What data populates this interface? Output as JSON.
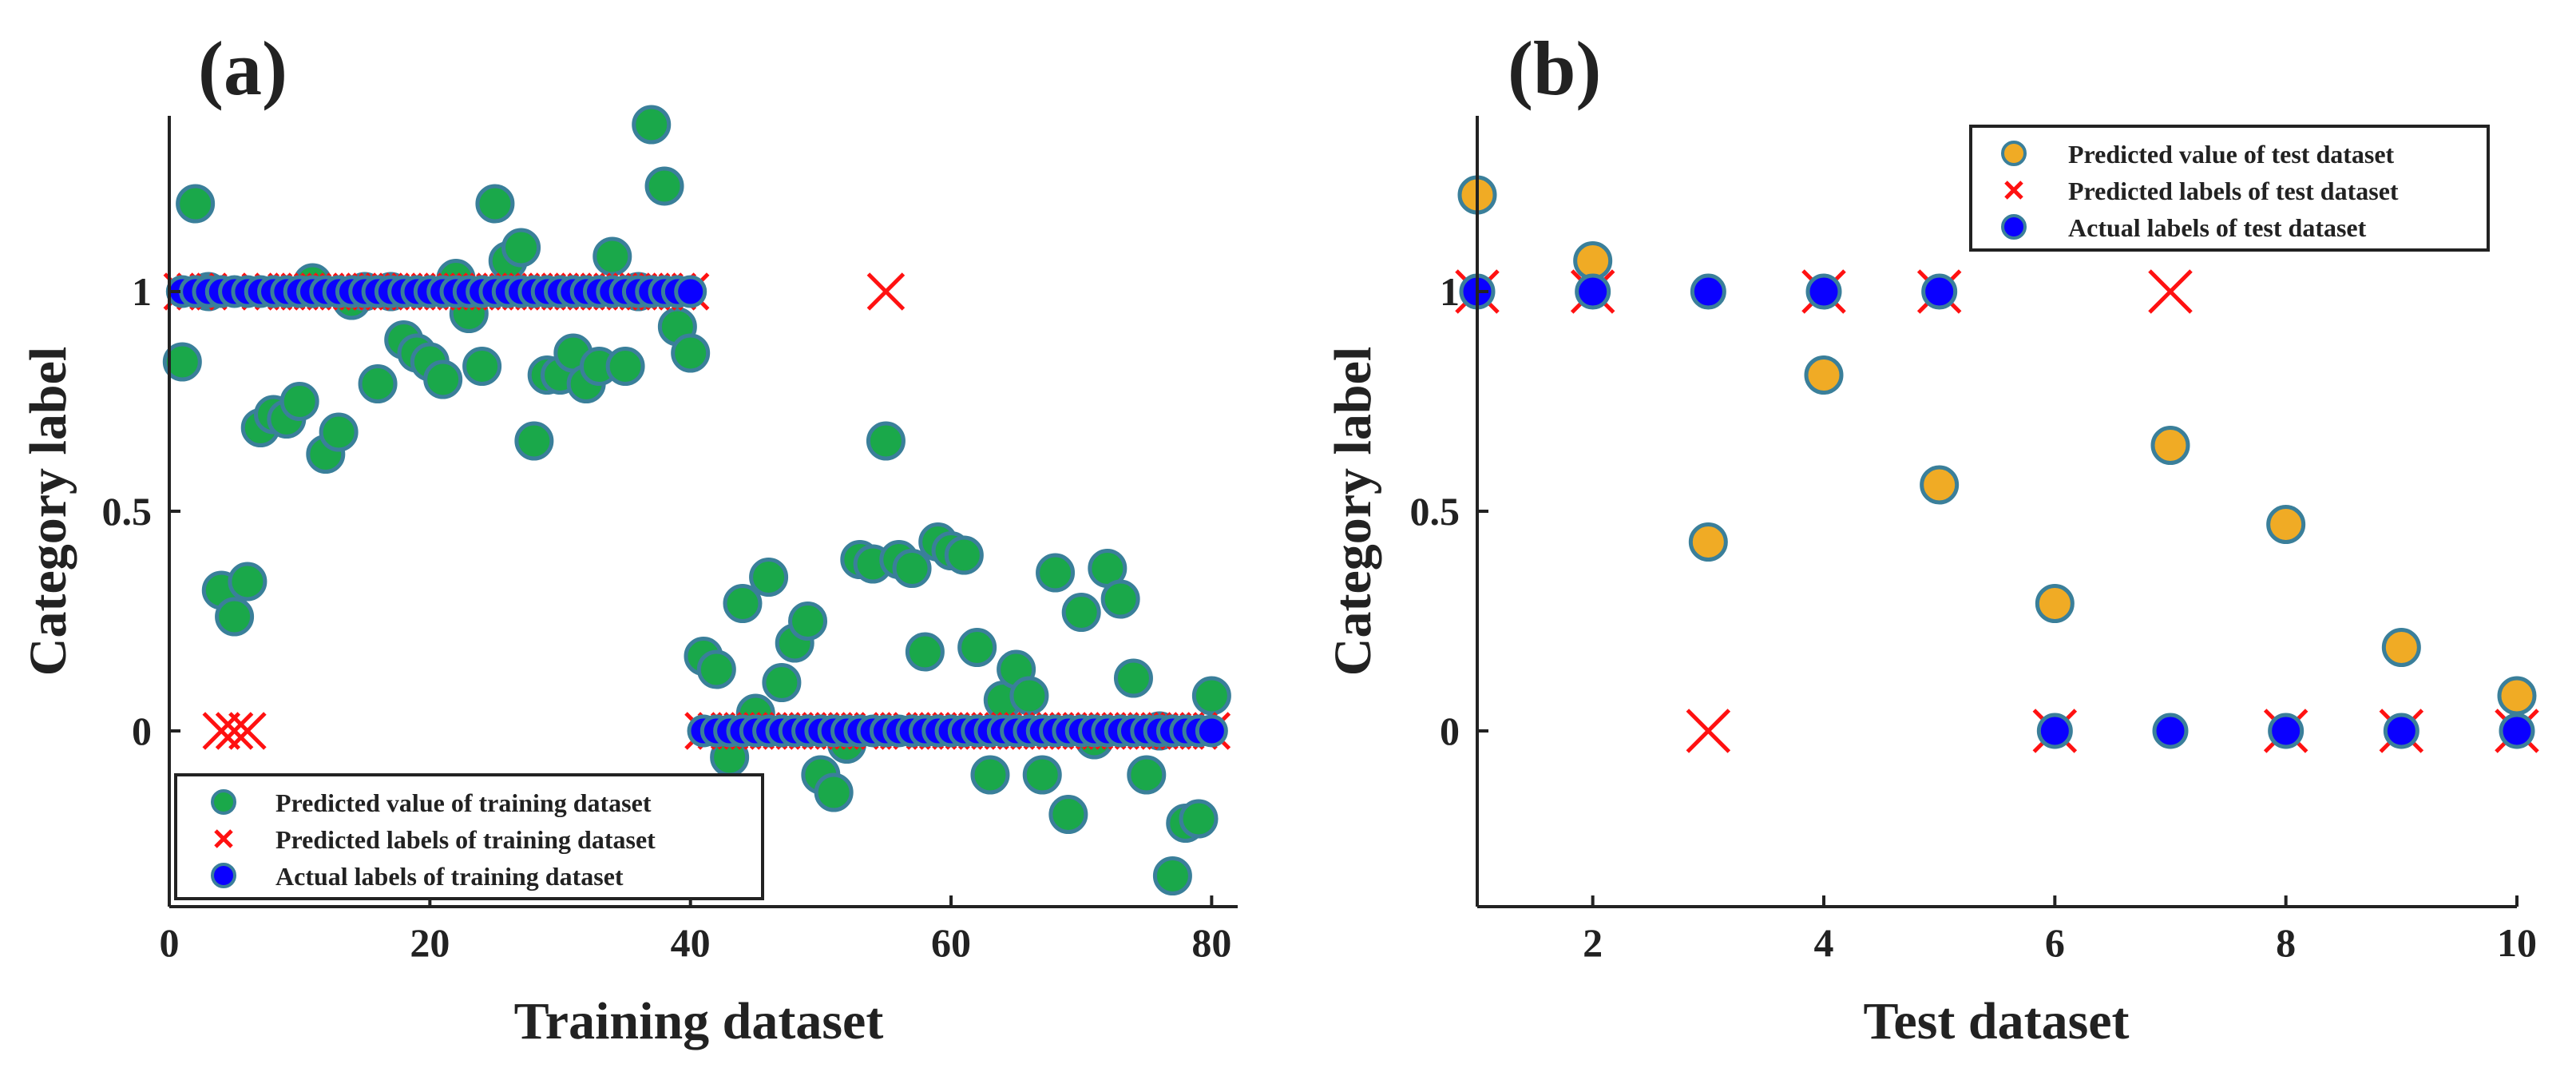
{
  "colors": {
    "train_fill": "#1aa84a",
    "train_edge": "#3a7f9a",
    "test_fill": "#f0ab25",
    "test_edge": "#3a7f9a",
    "actual_fill": "#0a00ff",
    "actual_edge": "#3a7f9a",
    "cross": "#ff1111",
    "text": "#222222"
  },
  "chart_data": [
    {
      "type": "scatter",
      "panel_label": "(a)",
      "xlabel": "Training dataset",
      "ylabel": "Category label",
      "xlim": [
        0,
        82
      ],
      "ylim": [
        -0.4,
        1.4
      ],
      "xticks": [
        0,
        20,
        40,
        60,
        80
      ],
      "xtick_labels": [
        "0",
        "20",
        "40",
        "60",
        "80"
      ],
      "yticks": [
        0,
        0.5,
        1
      ],
      "ytick_labels": [
        "0",
        "0.5",
        "1"
      ],
      "legend_location": "bottom-left",
      "legend": [
        "Predicted value of training dataset",
        "Predicted labels of training dataset",
        "Actual labels of training dataset"
      ],
      "series": [
        {
          "name": "Predicted value of training dataset",
          "marker": "circle",
          "x": [
            1,
            2,
            3,
            4,
            5,
            6,
            7,
            8,
            9,
            10,
            11,
            12,
            13,
            14,
            15,
            16,
            17,
            18,
            19,
            20,
            21,
            22,
            23,
            24,
            25,
            26,
            27,
            28,
            29,
            30,
            31,
            32,
            33,
            34,
            35,
            36,
            37,
            38,
            39,
            40,
            41,
            42,
            43,
            44,
            45,
            46,
            47,
            48,
            49,
            50,
            51,
            52,
            53,
            54,
            55,
            56,
            57,
            58,
            59,
            60,
            61,
            62,
            63,
            64,
            65,
            66,
            67,
            68,
            69,
            70,
            71,
            72,
            73,
            74,
            75,
            76,
            77,
            78,
            79,
            80
          ],
          "y": [
            0.84,
            1.2,
            1.0,
            0.32,
            0.26,
            0.34,
            0.69,
            0.72,
            0.71,
            0.75,
            1.02,
            0.63,
            0.68,
            0.98,
            1.0,
            0.79,
            1.0,
            0.89,
            0.86,
            0.84,
            0.8,
            1.03,
            0.95,
            0.83,
            1.2,
            1.07,
            1.1,
            0.66,
            0.81,
            0.81,
            0.86,
            0.79,
            0.83,
            1.08,
            0.83,
            1.0,
            1.38,
            1.24,
            0.92,
            0.86,
            0.17,
            0.14,
            -0.06,
            0.29,
            0.04,
            0.35,
            0.11,
            0.2,
            0.25,
            -0.1,
            -0.14,
            -0.03,
            0.39,
            0.38,
            0.66,
            0.39,
            0.37,
            0.18,
            0.43,
            0.41,
            0.4,
            0.19,
            -0.1,
            0.07,
            0.14,
            0.08,
            -0.1,
            0.36,
            -0.19,
            0.27,
            -0.02,
            0.37,
            0.3,
            0.12,
            -0.1,
            0.0,
            -0.33,
            -0.21,
            -0.2,
            0.08
          ]
        },
        {
          "name": "Predicted labels of training dataset",
          "marker": "x",
          "x": [
            1,
            2,
            3,
            4,
            5,
            6,
            7,
            8,
            9,
            10,
            11,
            12,
            13,
            14,
            15,
            16,
            17,
            18,
            19,
            20,
            21,
            22,
            23,
            24,
            25,
            26,
            27,
            28,
            29,
            30,
            31,
            32,
            33,
            34,
            35,
            36,
            37,
            38,
            39,
            40,
            41,
            42,
            43,
            44,
            45,
            46,
            47,
            48,
            49,
            50,
            51,
            52,
            53,
            54,
            55,
            56,
            57,
            58,
            59,
            60,
            61,
            62,
            63,
            64,
            65,
            66,
            67,
            68,
            69,
            70,
            71,
            72,
            73,
            74,
            75,
            76,
            77,
            78,
            79,
            80
          ],
          "y": [
            1,
            1,
            1,
            0,
            0,
            0,
            1,
            1,
            1,
            1,
            1,
            1,
            1,
            1,
            1,
            1,
            1,
            1,
            1,
            1,
            1,
            1,
            1,
            1,
            1,
            1,
            1,
            1,
            1,
            1,
            1,
            1,
            1,
            1,
            1,
            1,
            1,
            1,
            1,
            1,
            0,
            0,
            0,
            0,
            0,
            0,
            0,
            0,
            0,
            0,
            0,
            0,
            0,
            0,
            1,
            0,
            0,
            0,
            0,
            0,
            0,
            0,
            0,
            0,
            0,
            0,
            0,
            0,
            0,
            0,
            0,
            0,
            0,
            0,
            0,
            0,
            0,
            0,
            0,
            0
          ]
        },
        {
          "name": "Actual labels of training dataset",
          "marker": "circle",
          "x": [
            1,
            2,
            3,
            4,
            5,
            6,
            7,
            8,
            9,
            10,
            11,
            12,
            13,
            14,
            15,
            16,
            17,
            18,
            19,
            20,
            21,
            22,
            23,
            24,
            25,
            26,
            27,
            28,
            29,
            30,
            31,
            32,
            33,
            34,
            35,
            36,
            37,
            38,
            39,
            40,
            41,
            42,
            43,
            44,
            45,
            46,
            47,
            48,
            49,
            50,
            51,
            52,
            53,
            54,
            55,
            56,
            57,
            58,
            59,
            60,
            61,
            62,
            63,
            64,
            65,
            66,
            67,
            68,
            69,
            70,
            71,
            72,
            73,
            74,
            75,
            76,
            77,
            78,
            79,
            80
          ],
          "y": [
            1,
            1,
            1,
            1,
            1,
            1,
            1,
            1,
            1,
            1,
            1,
            1,
            1,
            1,
            1,
            1,
            1,
            1,
            1,
            1,
            1,
            1,
            1,
            1,
            1,
            1,
            1,
            1,
            1,
            1,
            1,
            1,
            1,
            1,
            1,
            1,
            1,
            1,
            1,
            1,
            0,
            0,
            0,
            0,
            0,
            0,
            0,
            0,
            0,
            0,
            0,
            0,
            0,
            0,
            0,
            0,
            0,
            0,
            0,
            0,
            0,
            0,
            0,
            0,
            0,
            0,
            0,
            0,
            0,
            0,
            0,
            0,
            0,
            0,
            0,
            0,
            0,
            0,
            0,
            0
          ]
        }
      ]
    },
    {
      "type": "scatter",
      "panel_label": "(b)",
      "xlabel": "Test dataset",
      "ylabel": "Category label",
      "xlim": [
        1,
        10
      ],
      "ylim": [
        -0.4,
        1.4
      ],
      "xticks": [
        2,
        4,
        6,
        8,
        10
      ],
      "xtick_labels": [
        "2",
        "4",
        "6",
        "8",
        "10"
      ],
      "yticks": [
        0,
        0.5,
        1
      ],
      "ytick_labels": [
        "0",
        "0.5",
        "1"
      ],
      "legend_location": "top-right",
      "legend": [
        "Predicted value of test dataset",
        "Predicted labels of test dataset",
        "Actual labels of test dataset"
      ],
      "series": [
        {
          "name": "Predicted value of test dataset",
          "marker": "circle",
          "x": [
            1,
            2,
            3,
            4,
            5,
            6,
            7,
            8,
            9,
            10
          ],
          "y": [
            1.22,
            1.07,
            0.43,
            0.81,
            0.56,
            0.29,
            0.65,
            0.47,
            0.19,
            0.08
          ]
        },
        {
          "name": "Predicted labels of test dataset",
          "marker": "x",
          "x": [
            1,
            2,
            3,
            4,
            5,
            6,
            7,
            8,
            9,
            10
          ],
          "y": [
            1,
            1,
            0,
            1,
            1,
            0,
            1,
            0,
            0,
            0
          ]
        },
        {
          "name": "Actual labels of test dataset",
          "marker": "circle",
          "x": [
            1,
            2,
            3,
            4,
            5,
            6,
            7,
            8,
            9,
            10
          ],
          "y": [
            1,
            1,
            1,
            1,
            1,
            0,
            0,
            0,
            0,
            0
          ]
        }
      ]
    }
  ]
}
